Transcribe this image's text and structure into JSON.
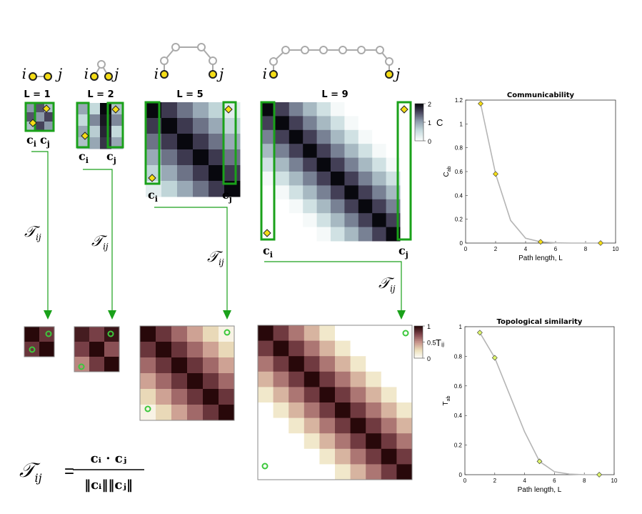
{
  "panels": [
    {
      "L": 1,
      "label": "L = 1"
    },
    {
      "L": 2,
      "label": "L = 2"
    },
    {
      "L": 5,
      "label": "L = 5"
    },
    {
      "L": 9,
      "label": "L = 9"
    }
  ],
  "graph_labels": {
    "i": "i",
    "j": "j"
  },
  "vector_labels": {
    "ci": "c",
    "cj": "c",
    "sub_i": "i",
    "sub_j": "j"
  },
  "transform": {
    "symbol": "𝒯",
    "sub": "ij"
  },
  "colorbars": {
    "communicability": {
      "label": "C",
      "ticks": [
        "2",
        "1",
        "0"
      ]
    },
    "similarity": {
      "label": "Tᵢⱼ",
      "ticks": [
        "1",
        "0.5",
        "0"
      ]
    }
  },
  "formula": {
    "lhs": "𝒯",
    "lhs_sub": "ij",
    "equals": "=",
    "numerator": "cᵢ · cⱼ",
    "denominator": "‖cᵢ‖‖cⱼ‖"
  },
  "colors": {
    "green": "#1aa11a",
    "node_yellow": "#f5dd16",
    "chain_gray": "#aaaaaa"
  },
  "chart_data": [
    {
      "type": "line",
      "title": "Communicability",
      "xlabel": "Path length, L",
      "ylabel": "C_ab",
      "xlim": [
        0,
        10
      ],
      "ylim": [
        0,
        1.2
      ],
      "xticks": [
        0,
        2,
        4,
        6,
        8,
        10
      ],
      "yticks": [
        0,
        0.2,
        0.4,
        0.6,
        0.8,
        1,
        1.2
      ],
      "xtick_labels": [
        "0",
        "2",
        "4",
        "6",
        "8",
        "10"
      ],
      "ytick_labels": [
        "0",
        "0.2",
        "0.4",
        "0.6",
        "0.8",
        "1",
        "1.2"
      ],
      "series": [
        {
          "name": "curve",
          "x": [
            1,
            2,
            3,
            4,
            5,
            6,
            7,
            8,
            9
          ],
          "values": [
            1.17,
            0.58,
            0.19,
            0.04,
            0.01,
            0.002,
            0.0,
            0.0,
            0.0
          ]
        }
      ],
      "markers": {
        "x": [
          1,
          2,
          5,
          9
        ],
        "values": [
          1.17,
          0.58,
          0.01,
          0.0
        ],
        "color": "#f5dd16"
      }
    },
    {
      "type": "line",
      "title": "Topological similarity",
      "xlabel": "Path length, L",
      "ylabel": "T_ab",
      "xlim": [
        0,
        10
      ],
      "ylim": [
        0,
        1
      ],
      "xticks": [
        0,
        2,
        4,
        6,
        8,
        10
      ],
      "yticks": [
        0,
        0.2,
        0.4,
        0.6,
        0.8,
        1
      ],
      "xtick_labels": [
        "0",
        "2",
        "4",
        "6",
        "8",
        "10"
      ],
      "ytick_labels": [
        "0",
        "0.2",
        "0.4",
        "0.6",
        "0.8",
        "1"
      ],
      "series": [
        {
          "name": "curve",
          "x": [
            1,
            2,
            3,
            4,
            5,
            6,
            7,
            8,
            9
          ],
          "values": [
            0.96,
            0.79,
            0.54,
            0.29,
            0.09,
            0.02,
            0.004,
            0.0,
            0.0
          ]
        }
      ],
      "markers": {
        "x": [
          1,
          2,
          5,
          9
        ],
        "values": [
          0.96,
          0.79,
          0.09,
          0.0
        ],
        "color": "#dff66d"
      }
    }
  ]
}
